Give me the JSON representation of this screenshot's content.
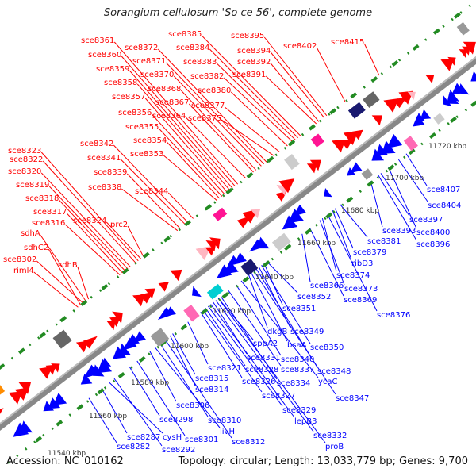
{
  "title": "Sorangium cellulosum 'So ce 56', complete genome",
  "footer": {
    "accession": "Accession: NC_010162",
    "summary": "Topology: circular; Length: 13,033,779 bp; Genes: 9,700"
  },
  "colors": {
    "forward": "#ff0000",
    "reverse": "#0000ff",
    "backbone": "#888888",
    "tick": "#228b22"
  },
  "ticks": [
    "11540 kbp",
    "11560 kbp",
    "11580 kbp",
    "11600 kbp",
    "11620 kbp",
    "11640 kbp",
    "11660 kbp",
    "11680 kbp",
    "11700 kbp",
    "11720 kbp"
  ],
  "forward_labels": [
    "sce8361",
    "sce8372",
    "sce8385",
    "sce8395",
    "sce8402",
    "sce8415",
    "sce8360",
    "sce8371",
    "sce8384",
    "sce8394",
    "sce8359",
    "sce8370",
    "sce8383",
    "sce8392",
    "sce8358",
    "sce8368",
    "sce8382",
    "sce8391",
    "sce8357",
    "sce8367",
    "sce8380",
    "sce8377",
    "sce8356",
    "sce8364",
    "sce8375",
    "sce8355",
    "sce8354",
    "sce8342",
    "sce8353",
    "sce8341",
    "sce8323",
    "sce8322",
    "sce8339",
    "sce8320",
    "sce8338",
    "sce8344",
    "sce8319",
    "sce8318",
    "sce8317",
    "sce8316",
    "sce8324",
    "prc2",
    "sdhA",
    "sdhC2",
    "sce8302",
    "sdhB",
    "riml4"
  ],
  "reverse_labels": [
    "sce8407",
    "sce8404",
    "sce8397",
    "sce8400",
    "sce8393",
    "sce8396",
    "sce8381",
    "sce8379",
    "ribD3",
    "sce8374",
    "sce8373",
    "sce8366",
    "sce8369",
    "sce8352",
    "sce8376",
    "sce8351",
    "dkgB",
    "sce8349",
    "bsaA",
    "sce8350",
    "sppA2",
    "sce8340",
    "sce8331",
    "sce8348",
    "sce8337",
    "sce8328",
    "sce8321",
    "ycaC",
    "sce8334",
    "sce8326",
    "sce8315",
    "sce8314",
    "sce8327",
    "sce8347",
    "sce8306",
    "sce8329",
    "sce8298",
    "sce8310",
    "lepB3",
    "cysH",
    "sce8301",
    "sce8312",
    "livH",
    "sce8332",
    "sce8287",
    "sce8282",
    "sce8292",
    "proB"
  ]
}
